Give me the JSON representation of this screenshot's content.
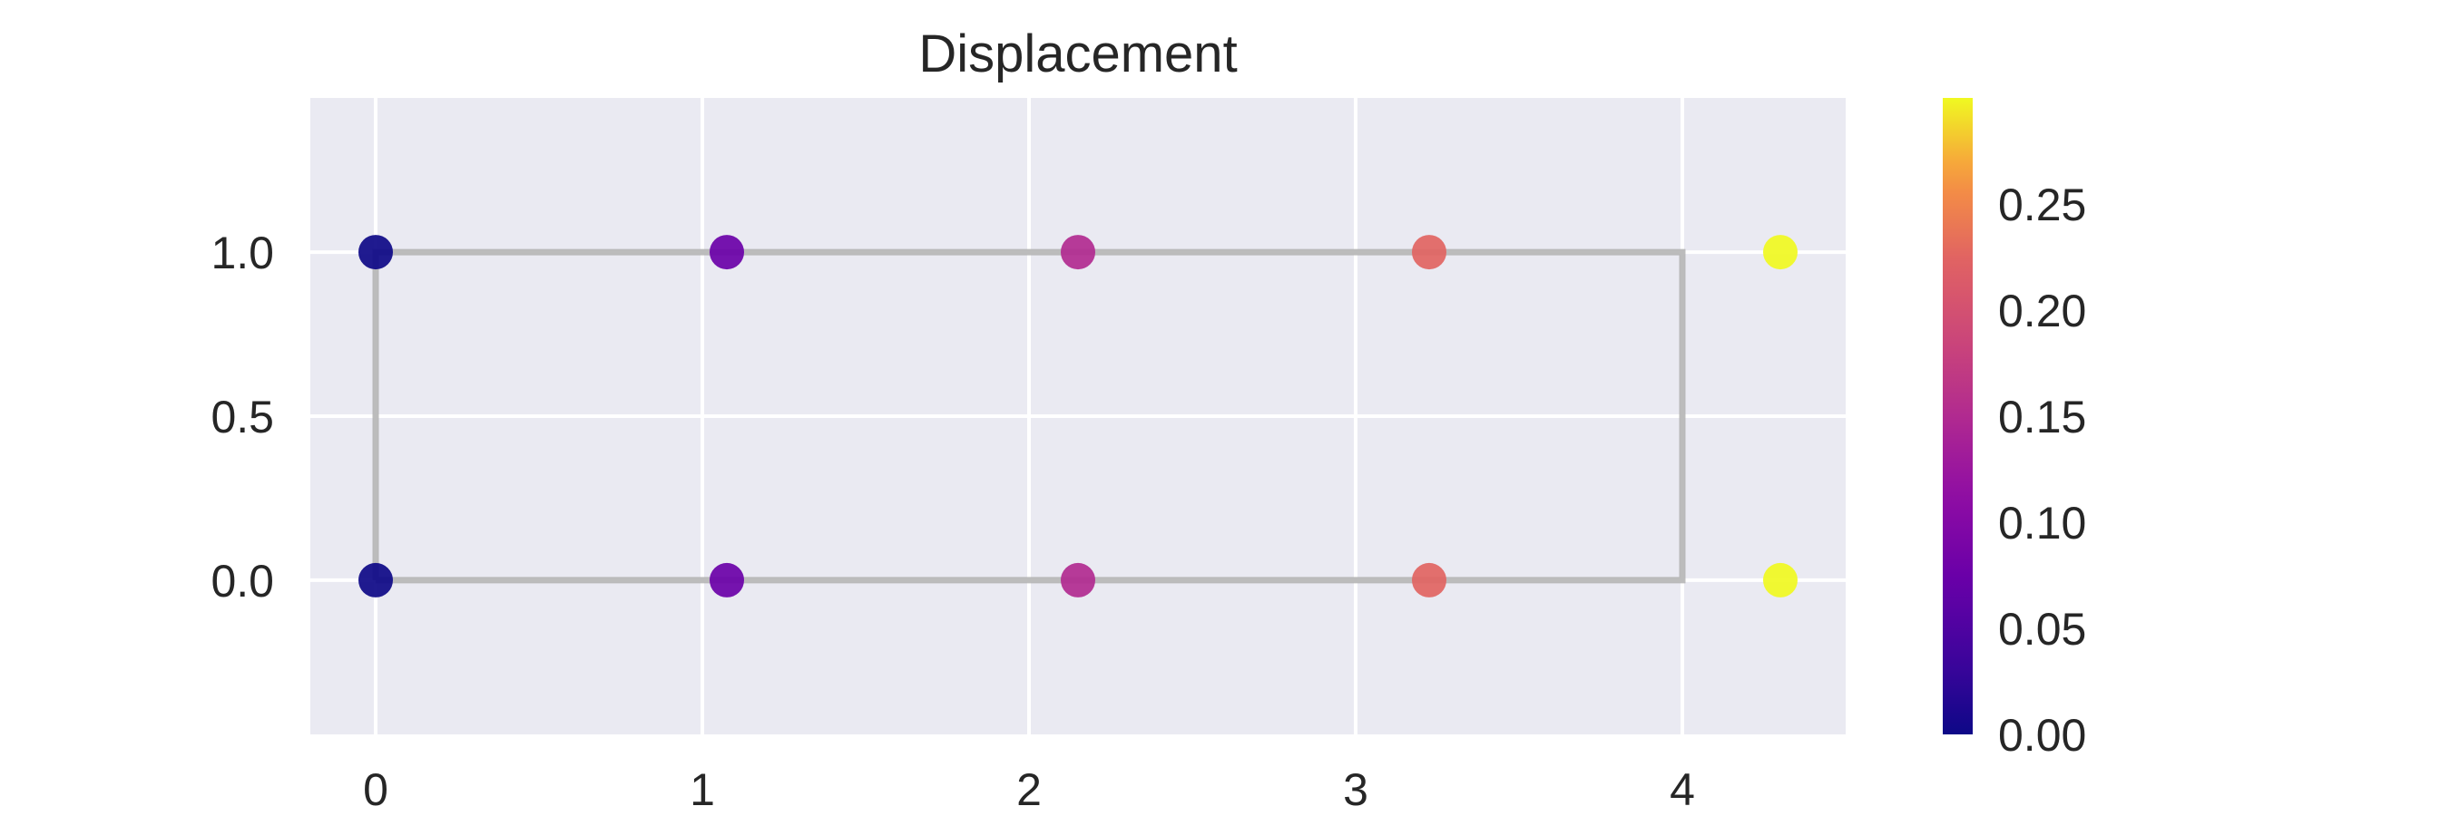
{
  "chart_data": {
    "type": "scatter",
    "title": "Displacement",
    "xlabel": "",
    "ylabel": "",
    "xlim": [
      -0.2,
      4.5
    ],
    "ylim": [
      -0.47,
      1.47
    ],
    "xticks": [
      0,
      1,
      2,
      3,
      4
    ],
    "yticks": [
      0.0,
      0.5,
      1.0
    ],
    "xtick_labels": [
      "0",
      "1",
      "2",
      "3",
      "4"
    ],
    "ytick_labels": [
      "0.0",
      "0.5",
      "1.0"
    ],
    "grid": true,
    "background": "#eaeaf2",
    "grid_color": "#ffffff",
    "reference_shape": {
      "x": [
        0,
        4,
        4,
        0,
        0
      ],
      "y": [
        0,
        0,
        1,
        1,
        0
      ],
      "color": "#b0b0b0"
    },
    "points": [
      {
        "x": 0.0,
        "y": 0.0,
        "value": 0.0
      },
      {
        "x": 0.0,
        "y": 1.0,
        "value": 0.0
      },
      {
        "x": 1.075,
        "y": 0.0,
        "value": 0.075
      },
      {
        "x": 1.075,
        "y": 1.0,
        "value": 0.075
      },
      {
        "x": 2.15,
        "y": 0.0,
        "value": 0.15
      },
      {
        "x": 2.15,
        "y": 1.0,
        "value": 0.15
      },
      {
        "x": 3.225,
        "y": 0.0,
        "value": 0.225
      },
      {
        "x": 3.225,
        "y": 1.0,
        "value": 0.225
      },
      {
        "x": 4.3,
        "y": 0.0,
        "value": 0.3
      },
      {
        "x": 4.3,
        "y": 1.0,
        "value": 0.3
      }
    ],
    "colorbar": {
      "colormap": "plasma",
      "vmin": 0.0,
      "vmax": 0.3,
      "ticks": [
        0.0,
        0.05,
        0.1,
        0.15,
        0.2,
        0.25
      ],
      "tick_labels": [
        "0.00",
        "0.05",
        "0.10",
        "0.15",
        "0.20",
        "0.25"
      ]
    }
  }
}
